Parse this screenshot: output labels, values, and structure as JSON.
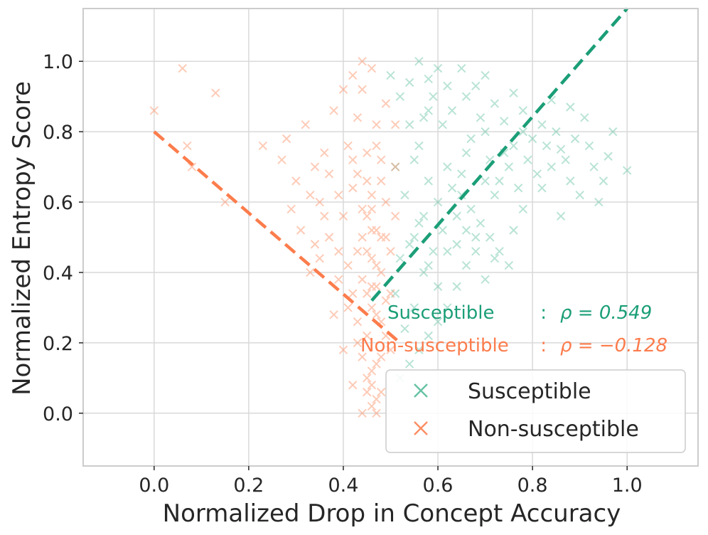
{
  "chart_data": {
    "type": "scatter",
    "title": "",
    "xlabel": "Normalized Drop in Concept Accuracy",
    "ylabel": "Normalized Entropy Score",
    "xlim": [
      -0.15,
      1.15
    ],
    "ylim": [
      -0.15,
      1.15
    ],
    "xticks": [
      0.0,
      0.2,
      0.4,
      0.6,
      0.8,
      1.0
    ],
    "yticks": [
      0.0,
      0.2,
      0.4,
      0.6,
      0.8,
      1.0
    ],
    "xtick_labels": [
      "0.0",
      "0.2",
      "0.4",
      "0.6",
      "0.8",
      "1.0"
    ],
    "ytick_labels": [
      "0.0",
      "0.2",
      "0.4",
      "0.6",
      "0.8",
      "1.0"
    ],
    "grid": true,
    "legend_position": "bottom-right",
    "series": [
      {
        "name": "Susceptible",
        "marker": "x",
        "color": "#66c2a5",
        "line_color": "#1b9e77",
        "trend": {
          "x": [
            0.46,
            1.0
          ],
          "y": [
            0.32,
            1.15
          ]
        },
        "correlation_label": "Susceptible",
        "correlation_sep": " : ",
        "correlation_value": "ρ = 0.549",
        "points": [
          [
            0.56,
            1.0
          ],
          [
            0.6,
            0.98
          ],
          [
            0.65,
            0.98
          ],
          [
            0.7,
            0.96
          ],
          [
            0.58,
            0.95
          ],
          [
            0.62,
            0.93
          ],
          [
            0.68,
            0.93
          ],
          [
            0.76,
            0.91
          ],
          [
            0.84,
            0.89
          ],
          [
            0.88,
            0.87
          ],
          [
            0.66,
            0.9
          ],
          [
            0.72,
            0.88
          ],
          [
            0.78,
            0.86
          ],
          [
            0.82,
            0.82
          ],
          [
            0.74,
            0.83
          ],
          [
            0.8,
            0.78
          ],
          [
            0.86,
            0.75
          ],
          [
            0.92,
            0.76
          ],
          [
            0.96,
            0.73
          ],
          [
            1.0,
            0.69
          ],
          [
            0.7,
            0.8
          ],
          [
            0.76,
            0.76
          ],
          [
            0.84,
            0.7
          ],
          [
            0.88,
            0.66
          ],
          [
            0.82,
            0.64
          ],
          [
            0.9,
            0.62
          ],
          [
            0.94,
            0.6
          ],
          [
            0.78,
            0.58
          ],
          [
            0.86,
            0.56
          ],
          [
            0.72,
            0.62
          ],
          [
            0.76,
            0.52
          ],
          [
            0.68,
            0.5
          ],
          [
            0.64,
            0.56
          ],
          [
            0.6,
            0.6
          ],
          [
            0.58,
            0.66
          ],
          [
            0.62,
            0.7
          ],
          [
            0.66,
            0.74
          ],
          [
            0.56,
            0.76
          ],
          [
            0.54,
            0.82
          ],
          [
            0.58,
            0.86
          ],
          [
            0.52,
            0.9
          ],
          [
            0.54,
            0.94
          ],
          [
            0.5,
            0.96
          ],
          [
            0.72,
            0.44
          ],
          [
            0.7,
            0.38
          ],
          [
            0.66,
            0.42
          ],
          [
            0.64,
            0.36
          ],
          [
            0.62,
            0.3
          ],
          [
            0.6,
            0.26
          ],
          [
            0.58,
            0.22
          ],
          [
            0.56,
            0.18
          ],
          [
            0.54,
            0.14
          ],
          [
            0.52,
            0.1
          ],
          [
            0.55,
            0.3
          ],
          [
            0.57,
            0.4
          ],
          [
            0.59,
            0.46
          ],
          [
            0.61,
            0.52
          ],
          [
            0.63,
            0.64
          ],
          [
            0.65,
            0.68
          ],
          [
            0.67,
            0.78
          ],
          [
            0.69,
            0.84
          ],
          [
            0.71,
            0.72
          ],
          [
            0.73,
            0.66
          ],
          [
            0.75,
            0.7
          ],
          [
            0.77,
            0.64
          ],
          [
            0.79,
            0.72
          ],
          [
            0.81,
            0.68
          ],
          [
            0.83,
            0.76
          ],
          [
            0.85,
            0.8
          ],
          [
            0.87,
            0.72
          ],
          [
            0.89,
            0.78
          ],
          [
            0.91,
            0.84
          ],
          [
            0.93,
            0.7
          ],
          [
            0.95,
            0.66
          ],
          [
            0.97,
            0.8
          ],
          [
            0.53,
            0.24
          ],
          [
            0.51,
            0.34
          ],
          [
            0.55,
            0.5
          ],
          [
            0.57,
            0.56
          ],
          [
            0.53,
            0.62
          ],
          [
            0.51,
            0.7
          ],
          [
            0.55,
            0.72
          ],
          [
            0.57,
            0.84
          ],
          [
            0.59,
            0.9
          ],
          [
            0.61,
            0.82
          ],
          [
            0.63,
            0.86
          ],
          [
            0.65,
            0.62
          ],
          [
            0.67,
            0.58
          ],
          [
            0.69,
            0.54
          ],
          [
            0.71,
            0.5
          ],
          [
            0.73,
            0.46
          ],
          [
            0.75,
            0.42
          ],
          [
            0.52,
            0.44
          ],
          [
            0.54,
            0.48
          ],
          [
            0.56,
            0.54
          ],
          [
            0.58,
            0.42
          ],
          [
            0.6,
            0.36
          ],
          [
            0.62,
            0.46
          ],
          [
            0.64,
            0.48
          ],
          [
            0.66,
            0.52
          ],
          [
            0.68,
            0.46
          ],
          [
            0.7,
            0.66
          ],
          [
            0.74,
            0.74
          ],
          [
            0.78,
            0.8
          ]
        ]
      },
      {
        "name": "Non-susceptible",
        "marker": "x",
        "color": "#fc8d62",
        "line_color": "#fc7c4c",
        "trend": {
          "x": [
            0.0,
            0.52
          ],
          "y": [
            0.8,
            0.2
          ]
        },
        "correlation_label": "Non-susceptible",
        "correlation_sep": " : ",
        "correlation_value": "ρ = −0.128",
        "points": [
          [
            0.0,
            0.86
          ],
          [
            0.06,
            0.98
          ],
          [
            0.13,
            0.91
          ],
          [
            0.07,
            0.76
          ],
          [
            0.08,
            0.7
          ],
          [
            0.15,
            0.6
          ],
          [
            0.23,
            0.76
          ],
          [
            0.27,
            0.72
          ],
          [
            0.28,
            0.78
          ],
          [
            0.3,
            0.66
          ],
          [
            0.32,
            0.82
          ],
          [
            0.34,
            0.7
          ],
          [
            0.36,
            0.56
          ],
          [
            0.38,
            0.86
          ],
          [
            0.4,
            0.92
          ],
          [
            0.42,
            0.96
          ],
          [
            0.44,
            1.0
          ],
          [
            0.46,
            0.98
          ],
          [
            0.35,
            0.44
          ],
          [
            0.33,
            0.62
          ],
          [
            0.31,
            0.52
          ],
          [
            0.29,
            0.58
          ],
          [
            0.37,
            0.5
          ],
          [
            0.39,
            0.38
          ],
          [
            0.41,
            0.3
          ],
          [
            0.43,
            0.2
          ],
          [
            0.45,
            0.1
          ],
          [
            0.4,
            0.18
          ],
          [
            0.38,
            0.28
          ],
          [
            0.42,
            0.08
          ],
          [
            0.44,
            0.0
          ],
          [
            0.46,
            0.02
          ],
          [
            0.48,
            0.06
          ],
          [
            0.47,
            0.14
          ],
          [
            0.49,
            0.22
          ],
          [
            0.45,
            0.34
          ],
          [
            0.47,
            0.42
          ],
          [
            0.49,
            0.5
          ],
          [
            0.46,
            0.58
          ],
          [
            0.48,
            0.66
          ],
          [
            0.45,
            0.74
          ],
          [
            0.47,
            0.82
          ],
          [
            0.49,
            0.88
          ],
          [
            0.44,
            0.92
          ],
          [
            0.43,
            0.84
          ],
          [
            0.41,
            0.76
          ],
          [
            0.42,
            0.64
          ],
          [
            0.4,
            0.56
          ],
          [
            0.43,
            0.46
          ],
          [
            0.44,
            0.38
          ],
          [
            0.46,
            0.3
          ],
          [
            0.48,
            0.26
          ],
          [
            0.5,
            0.18
          ],
          [
            0.5,
            0.34
          ],
          [
            0.5,
            0.46
          ],
          [
            0.51,
            0.56
          ],
          [
            0.51,
            0.7
          ],
          [
            0.51,
            0.82
          ],
          [
            0.47,
            0.04
          ],
          [
            0.46,
            0.12
          ],
          [
            0.48,
            0.16
          ],
          [
            0.45,
            0.22
          ],
          [
            0.47,
            0.28
          ],
          [
            0.49,
            0.32
          ],
          [
            0.46,
            0.36
          ],
          [
            0.48,
            0.4
          ],
          [
            0.45,
            0.46
          ],
          [
            0.47,
            0.52
          ],
          [
            0.49,
            0.6
          ],
          [
            0.46,
            0.62
          ],
          [
            0.48,
            0.72
          ],
          [
            0.45,
            0.66
          ],
          [
            0.47,
            0.76
          ],
          [
            0.44,
            0.5
          ],
          [
            0.44,
            0.58
          ],
          [
            0.43,
            0.68
          ],
          [
            0.42,
            0.72
          ],
          [
            0.39,
            0.62
          ],
          [
            0.37,
            0.68
          ],
          [
            0.36,
            0.74
          ],
          [
            0.35,
            0.6
          ],
          [
            0.34,
            0.48
          ],
          [
            0.33,
            0.4
          ],
          [
            0.39,
            0.46
          ],
          [
            0.41,
            0.42
          ],
          [
            0.42,
            0.34
          ],
          [
            0.43,
            0.26
          ],
          [
            0.44,
            0.16
          ],
          [
            0.45,
            0.06
          ],
          [
            0.46,
            0.08
          ],
          [
            0.47,
            0.0
          ],
          [
            0.46,
            0.44
          ],
          [
            0.47,
            0.36
          ],
          [
            0.48,
            0.5
          ],
          [
            0.46,
            0.52
          ],
          [
            0.45,
            0.56
          ]
        ]
      }
    ]
  }
}
